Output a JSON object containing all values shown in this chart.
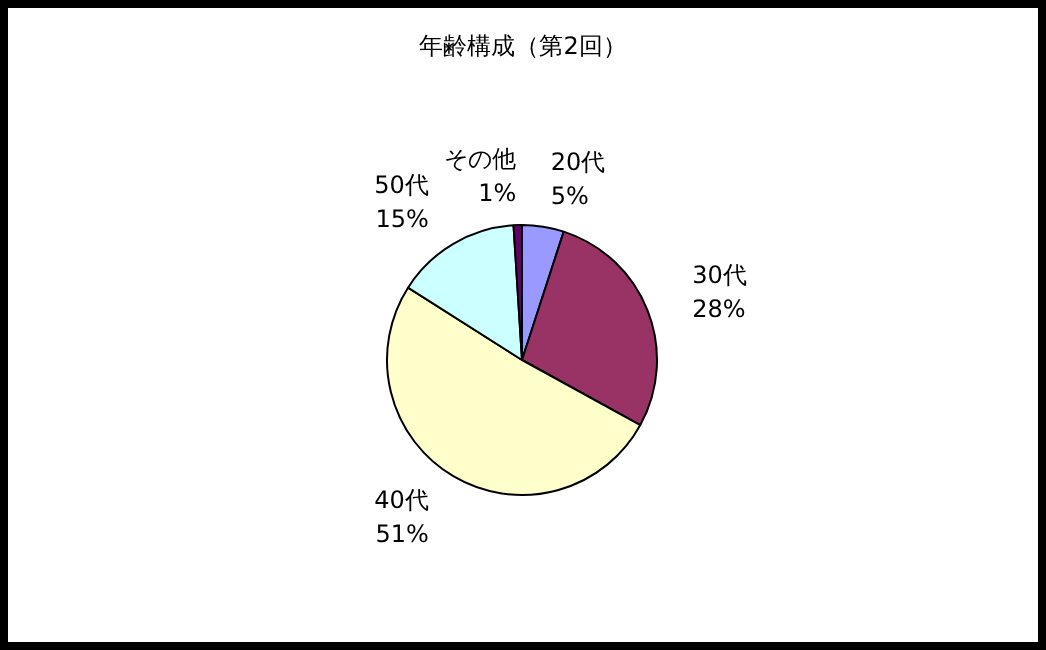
{
  "chart_data": {
    "type": "pie",
    "title": "年齢構成（第2回）",
    "categories": [
      "20代",
      "30代",
      "40代",
      "50代",
      "その他"
    ],
    "values": [
      5,
      28,
      51,
      15,
      1
    ],
    "colors": [
      "#9999ff",
      "#993366",
      "#ffffcc",
      "#ccffff",
      "#660066"
    ],
    "value_labels": [
      "5%",
      "28%",
      "51%",
      "15%",
      "1%"
    ],
    "legend": false
  }
}
